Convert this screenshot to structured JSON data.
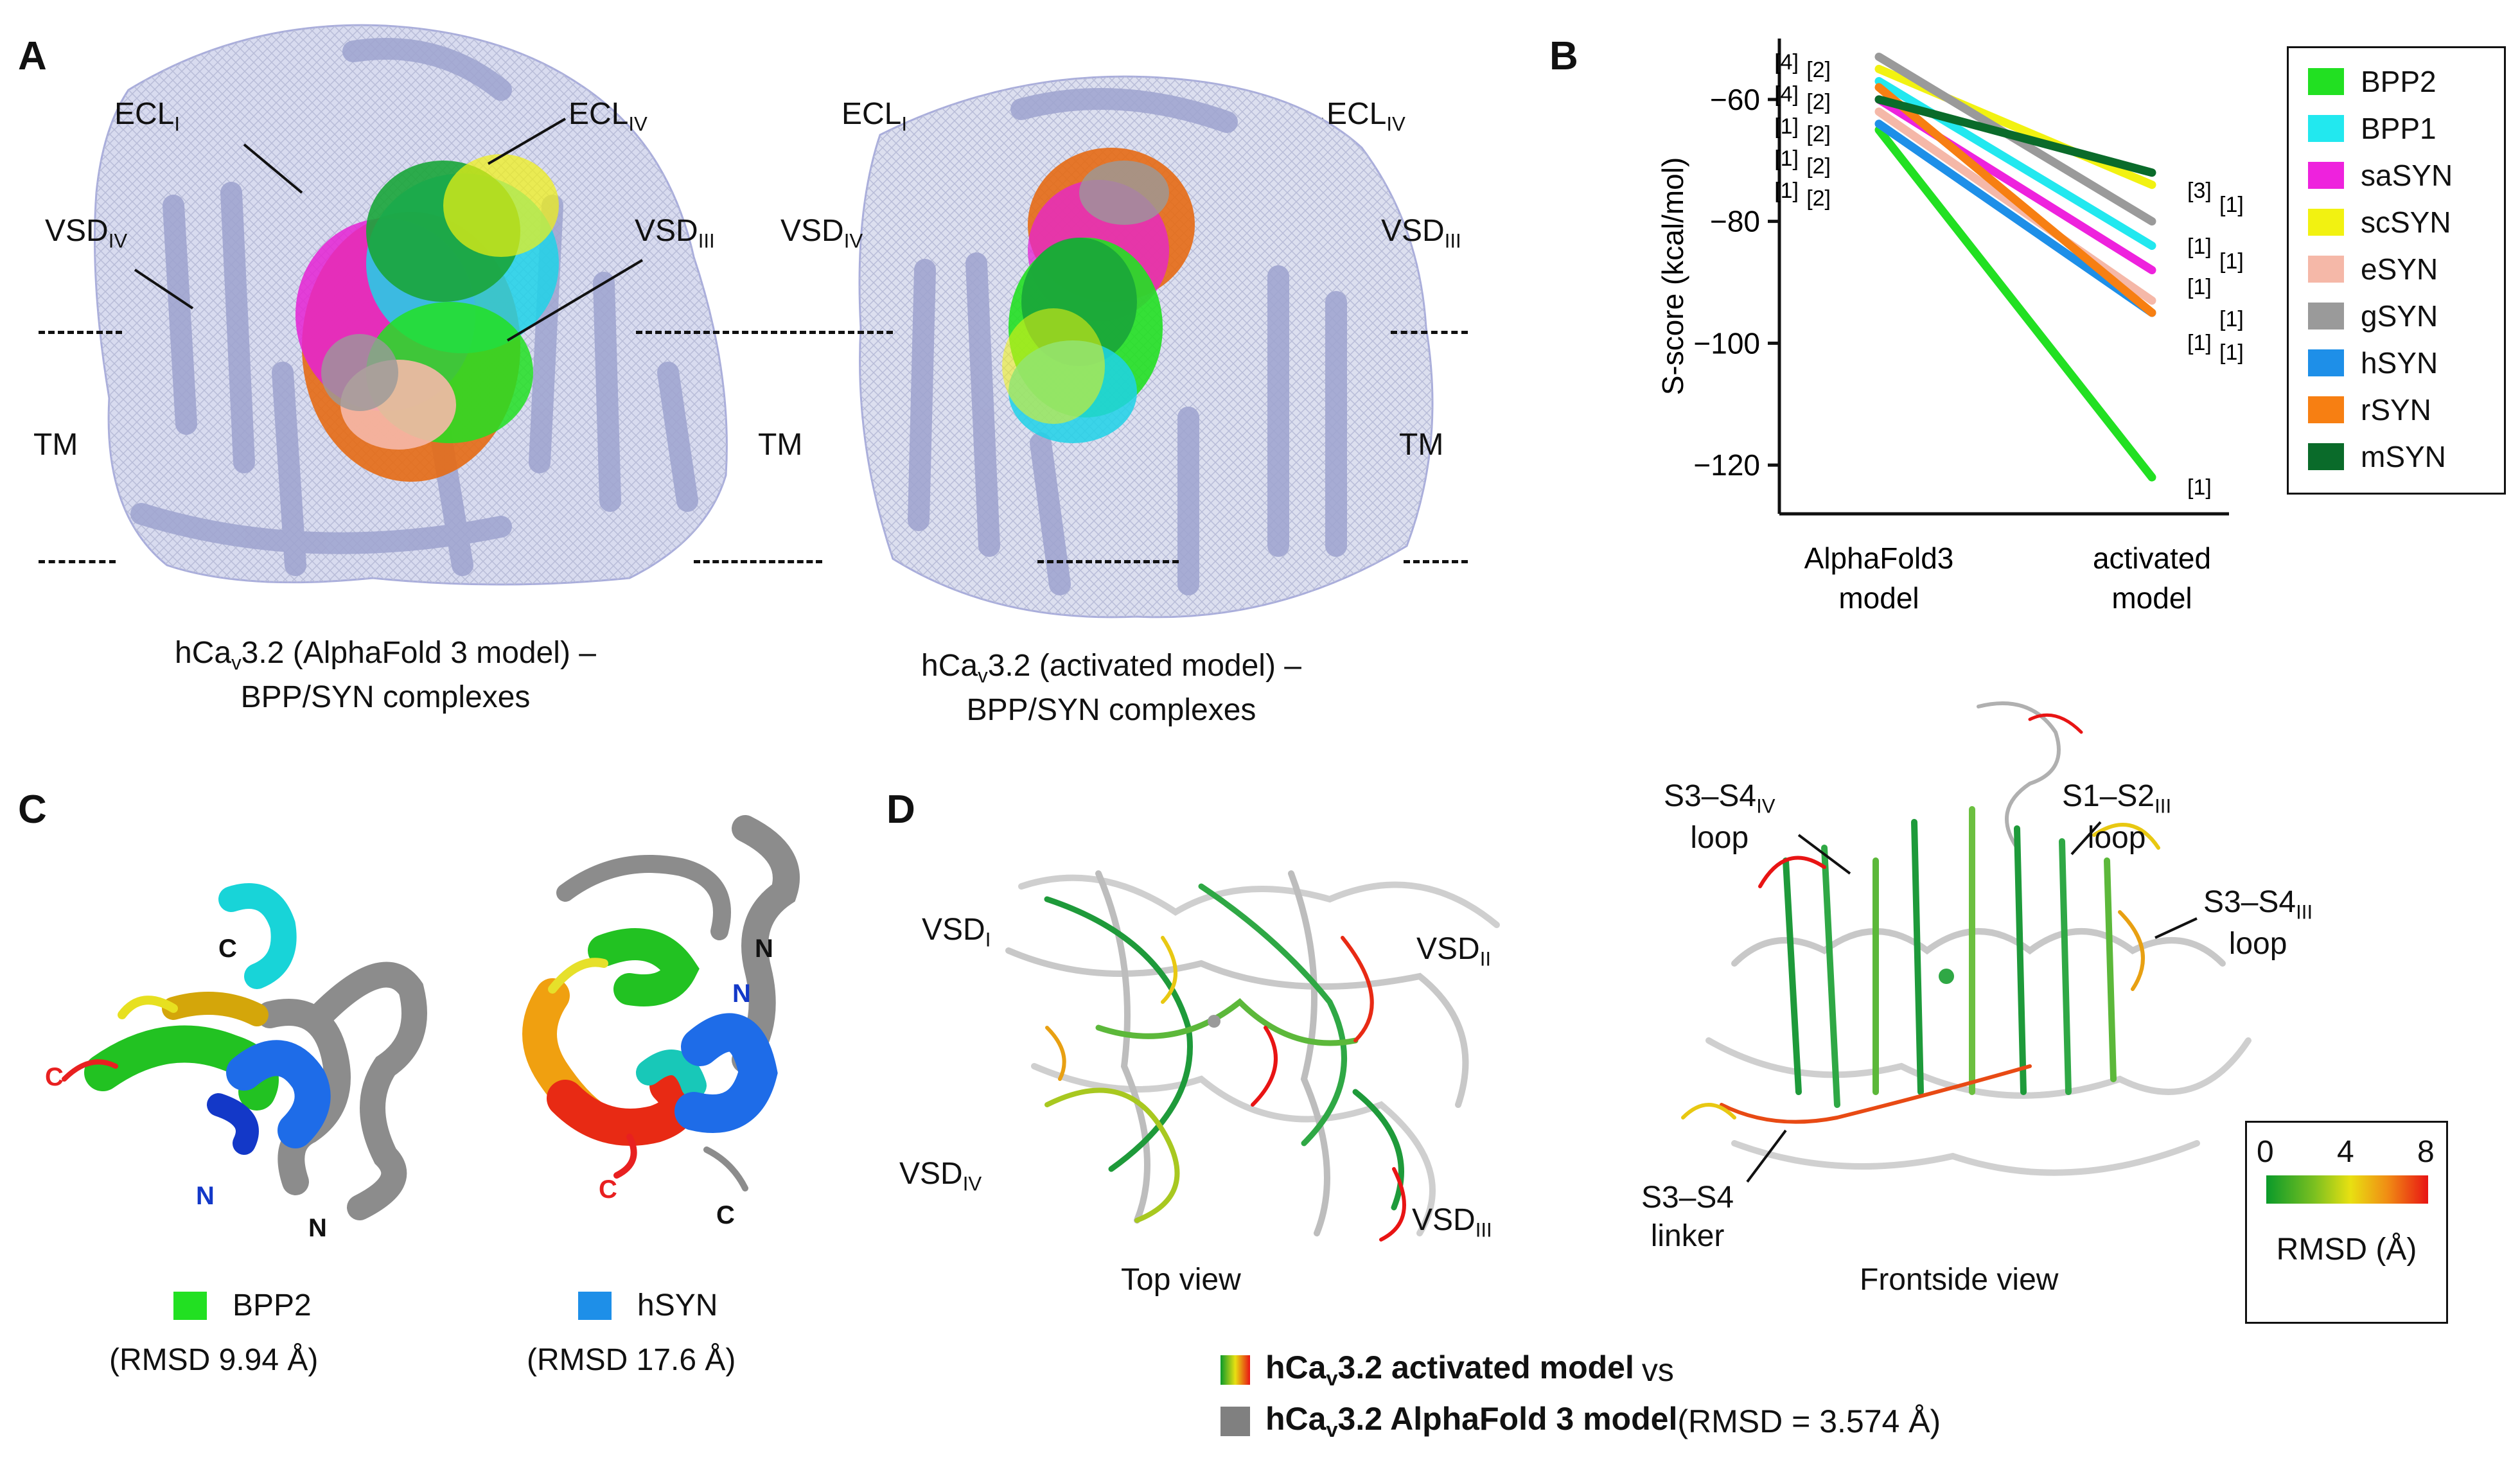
{
  "panels": {
    "a": "A",
    "b": "B",
    "c": "C",
    "d": "D"
  },
  "panel_a": {
    "left": {
      "ecl_i": "ECL",
      "ecl_i_sub": "I",
      "ecl_iv": "ECL",
      "ecl_iv_sub": "IV",
      "vsd_iv": "VSD",
      "vsd_iv_sub": "IV",
      "vsd_iii": "VSD",
      "vsd_iii_sub": "III",
      "tm": "TM",
      "caption_1a": "hCa",
      "caption_1sub": "v",
      "caption_1b": "3.2 (AlphaFold 3 model) –",
      "caption_2": "BPP/SYN complexes"
    },
    "right": {
      "ecl_i": "ECL",
      "ecl_i_sub": "I",
      "ecl_iv": "ECL",
      "ecl_iv_sub": "IV",
      "vsd_iv": "VSD",
      "vsd_iv_sub": "IV",
      "vsd_iii": "VSD",
      "vsd_iii_sub": "III",
      "tm_left": "TM",
      "tm_right": "TM",
      "caption_1a": "hCa",
      "caption_1sub": "v",
      "caption_1b": "3.2 (activated model) –",
      "caption_2": "BPP/SYN complexes"
    }
  },
  "chart_data": {
    "type": "line",
    "ylabel": "S-score (kcal/mol)",
    "categories": [
      "AlphaFold3 model",
      "activated model"
    ],
    "x_tick_lines": [
      [
        "AlphaFold3",
        "model"
      ],
      [
        "activated",
        "model"
      ]
    ],
    "ylim": [
      -128,
      -50
    ],
    "yticks": [
      -60,
      -80,
      -100,
      -120
    ],
    "legend_position": "right",
    "series": [
      {
        "name": "BPP2",
        "color": "#22e022",
        "values": [
          -65,
          -122
        ]
      },
      {
        "name": "BPP1",
        "color": "#22e8ef",
        "values": [
          -57,
          -84
        ]
      },
      {
        "name": "saSYN",
        "color": "#ee22dd",
        "values": [
          -60,
          -88
        ]
      },
      {
        "name": "scSYN",
        "color": "#f2f211",
        "values": [
          -55,
          -74
        ]
      },
      {
        "name": "eSYN",
        "color": "#f5b8a8",
        "values": [
          -62,
          -93
        ]
      },
      {
        "name": "gSYN",
        "color": "#9a9a9a",
        "values": [
          -53,
          -80
        ]
      },
      {
        "name": "hSYN",
        "color": "#1e8fe8",
        "values": [
          -64,
          -95
        ]
      },
      {
        "name": "rSYN",
        "color": "#f77f12",
        "values": [
          -58,
          -95
        ]
      },
      {
        "name": "mSYN",
        "color": "#0a6b2a",
        "values": [
          -60,
          -72
        ]
      }
    ],
    "left_annotations": [
      [
        "[4]",
        "[2]"
      ],
      [
        "[4]",
        "[2]"
      ],
      [
        "[1]",
        "[2]"
      ],
      [
        "[1]",
        "[2]"
      ],
      [
        "[1]",
        "[2]"
      ]
    ],
    "right_annotations": [
      "[3]",
      "[1]",
      "[1]",
      "[1]",
      "[1]",
      "[1]",
      "[1]",
      "[1]",
      "[1]"
    ]
  },
  "panel_c": {
    "bpp2": {
      "c_label": "C",
      "n_label": "N",
      "c_gray": "C",
      "n_gray": "N",
      "legend": "BPP2",
      "rmsd": "(RMSD 9.94 Å)",
      "color": "#22e022"
    },
    "hsyn": {
      "c_label": "C",
      "n_label": "N",
      "c_gray": "C",
      "n_gray": "N",
      "legend": "hSYN",
      "rmsd": "(RMSD 17.6 Å)",
      "color": "#1e8fe8"
    }
  },
  "panel_d": {
    "vsd_i": "VSD",
    "vsd_i_sub": "I",
    "vsd_ii": "VSD",
    "vsd_ii_sub": "II",
    "vsd_iv": "VSD",
    "vsd_iv_sub": "IV",
    "vsd_iii": "VSD",
    "vsd_iii_sub": "III",
    "top_view": "Top view",
    "s3s4_iv_1": "S3–S4",
    "s3s4_iv_sub": "IV",
    "s3s4_iv_2": "loop",
    "s1s2_iii_1": "S1–S2",
    "s1s2_iii_sub": "III",
    "s1s2_iii_2": "loop",
    "s3s4_iii_1": "S3–S4",
    "s3s4_iii_sub": "III",
    "s3s4_iii_2": "loop",
    "linker_1": "S3–S4",
    "linker_2": "linker",
    "frontside_view": "Frontside view",
    "rmsd_ticks": [
      "0",
      "4",
      "8"
    ],
    "rmsd_label": "RMSD (Å)",
    "bottom_line1_a": "hCa",
    "bottom_line1_sub": "v",
    "bottom_line1_b": "3.2 activated model",
    "bottom_line1_c": " vs",
    "bottom_line2_a": "hCa",
    "bottom_line2_sub": "v",
    "bottom_line2_b": "3.2 AlphaFold 3 model",
    "bottom_line2_c": " (RMSD = 3.574 Å)"
  }
}
